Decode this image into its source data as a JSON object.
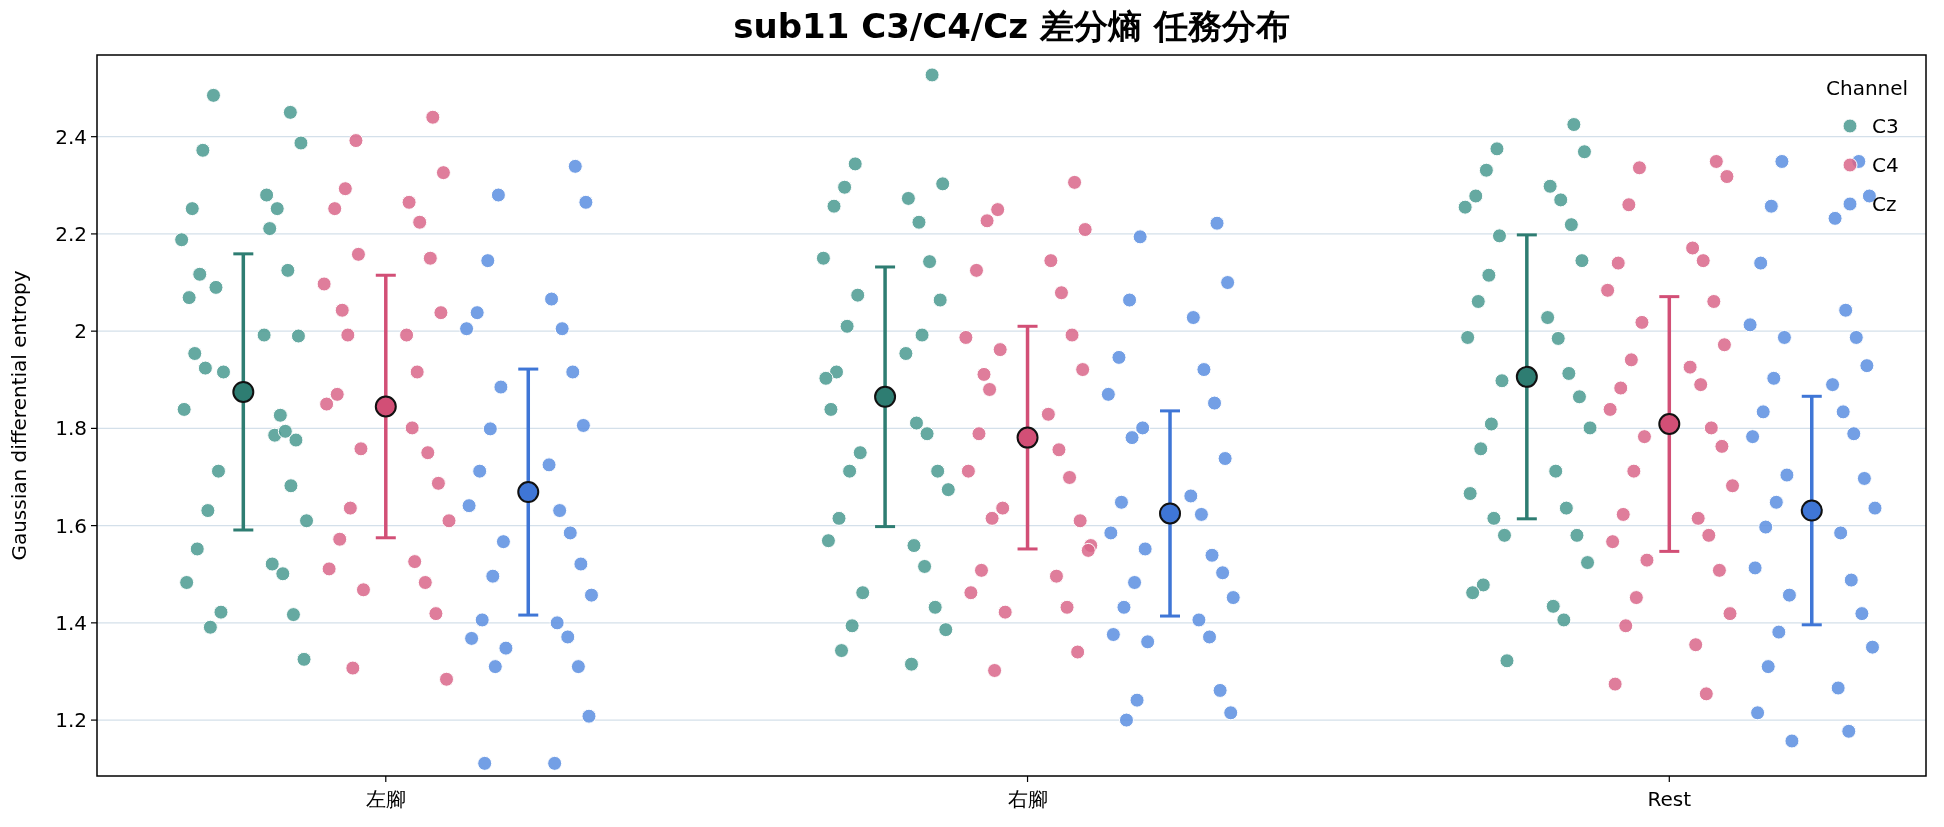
{
  "chart_data": {
    "type": "scatter",
    "title": "sub11 C3/C4/Cz 差分熵 任務分布",
    "ylabel": "Gaussian differential entropy",
    "legend_title": "Channel",
    "legend": "top right",
    "grid": "y",
    "marker": "circle",
    "categories": [
      "左腳",
      "右腳",
      "Rest"
    ],
    "ylim": [
      1.085,
      2.568
    ],
    "yticks": [
      1.2,
      1.4,
      1.6,
      1.8,
      2.0,
      2.2,
      2.4
    ],
    "series": [
      {
        "name": "C3",
        "color": "#4a9a90",
        "x": [
          "左腳",
          "左腳",
          "左腳",
          "左腳",
          "左腳",
          "左腳",
          "左腳",
          "左腳",
          "左腳",
          "左腳",
          "左腳",
          "左腳",
          "左腳",
          "左腳",
          "左腳",
          "左腳",
          "左腳",
          "左腳",
          "左腳",
          "左腳",
          "左腳",
          "左腳",
          "左腳",
          "左腳",
          "左腳",
          "左腳",
          "左腳",
          "左腳",
          "左腳",
          "左腳",
          "左腳",
          "左腳",
          "左腳",
          "左腳",
          "左腳",
          "右腳",
          "右腳",
          "右腳",
          "右腳",
          "右腳",
          "右腳",
          "右腳",
          "右腳",
          "右腳",
          "右腳",
          "右腳",
          "右腳",
          "右腳",
          "右腳",
          "右腳",
          "右腳",
          "右腳",
          "右腳",
          "右腳",
          "右腳",
          "右腳",
          "右腳",
          "右腳",
          "右腳",
          "右腳",
          "右腳",
          "右腳",
          "右腳",
          "右腳",
          "右腳",
          "右腳",
          "右腳",
          "右腳",
          "Rest",
          "Rest",
          "Rest",
          "Rest",
          "Rest",
          "Rest",
          "Rest",
          "Rest",
          "Rest",
          "Rest",
          "Rest",
          "Rest",
          "Rest",
          "Rest",
          "Rest",
          "Rest",
          "Rest",
          "Rest",
          "Rest",
          "Rest",
          "Rest",
          "Rest",
          "Rest",
          "Rest",
          "Rest",
          "Rest",
          "Rest",
          "Rest",
          "Rest",
          "Rest",
          "Rest",
          "Rest",
          "Rest",
          "Rest"
        ],
        "values": [
          2.45,
          2.485,
          2.387,
          2.372,
          2.28,
          2.252,
          2.252,
          2.188,
          2.125,
          2.09,
          1.99,
          1.924,
          1.992,
          1.954,
          1.786,
          1.839,
          1.794,
          1.712,
          1.776,
          1.631,
          1.61,
          1.552,
          1.521,
          1.483,
          1.501,
          1.422,
          1.417,
          1.391,
          1.325,
          2.117,
          2.211,
          2.069,
          1.827,
          1.916,
          1.682,
          2.527,
          2.344,
          2.303,
          2.296,
          2.273,
          2.257,
          2.224,
          2.15,
          2.143,
          2.074,
          2.064,
          2.01,
          1.954,
          1.916,
          1.811,
          1.903,
          1.789,
          1.75,
          1.712,
          1.712,
          1.674,
          1.615,
          1.559,
          1.569,
          1.516,
          1.462,
          1.432,
          1.394,
          1.386,
          1.343,
          1.315,
          1.839,
          1.992,
          2.425,
          2.375,
          2.369,
          2.331,
          2.298,
          2.278,
          2.27,
          2.255,
          2.219,
          2.196,
          2.145,
          2.115,
          2.028,
          2.061,
          1.985,
          1.987,
          1.913,
          1.898,
          1.865,
          1.809,
          1.801,
          1.758,
          1.712,
          1.666,
          1.636,
          1.58,
          1.58,
          1.615,
          1.524,
          1.478,
          1.434,
          1.462,
          1.406,
          1.322
        ]
      },
      {
        "name": "C4",
        "color": "#d9668a",
        "x": [
          "左腳",
          "左腳",
          "左腳",
          "左腳",
          "左腳",
          "左腳",
          "左腳",
          "左腳",
          "左腳",
          "左腳",
          "左腳",
          "左腳",
          "左腳",
          "左腳",
          "左腳",
          "左腳",
          "左腳",
          "左腳",
          "左腳",
          "左腳",
          "左腳",
          "左腳",
          "左腳",
          "左腳",
          "左腳",
          "左腳",
          "左腳",
          "左腳",
          "左腳",
          "左腳",
          "左腳",
          "右腳",
          "右腳",
          "右腳",
          "右腳",
          "右腳",
          "右腳",
          "右腳",
          "右腳",
          "右腳",
          "右腳",
          "右腳",
          "右腳",
          "右腳",
          "右腳",
          "右腳",
          "右腳",
          "右腳",
          "右腳",
          "右腳",
          "右腳",
          "右腳",
          "右腳",
          "右腳",
          "右腳",
          "右腳",
          "右腳",
          "右腳",
          "右腳",
          "右腳",
          "右腳",
          "Rest",
          "Rest",
          "Rest",
          "Rest",
          "Rest",
          "Rest",
          "Rest",
          "Rest",
          "Rest",
          "Rest",
          "Rest",
          "Rest",
          "Rest",
          "Rest",
          "Rest",
          "Rest",
          "Rest",
          "Rest",
          "Rest",
          "Rest",
          "Rest",
          "Rest",
          "Rest",
          "Rest",
          "Rest",
          "Rest",
          "Rest",
          "Rest",
          "Rest",
          "Rest",
          "Rest",
          "Rest",
          "Rest"
        ],
        "values": [
          2.44,
          2.392,
          2.326,
          2.293,
          2.265,
          2.252,
          2.224,
          2.097,
          2.15,
          2.158,
          2.038,
          1.992,
          1.992,
          1.87,
          1.916,
          1.85,
          1.75,
          1.758,
          1.687,
          1.636,
          1.61,
          1.572,
          1.526,
          1.511,
          1.483,
          1.468,
          1.419,
          1.307,
          1.284,
          2.043,
          1.801,
          2.306,
          2.25,
          2.209,
          2.227,
          2.145,
          2.125,
          2.079,
          1.987,
          1.992,
          1.962,
          1.921,
          1.88,
          1.829,
          1.789,
          1.756,
          1.712,
          1.699,
          1.636,
          1.61,
          1.615,
          1.559,
          1.508,
          1.496,
          1.462,
          1.432,
          1.422,
          1.34,
          1.302,
          1.549,
          1.911,
          2.349,
          2.336,
          2.318,
          2.26,
          2.171,
          2.14,
          2.145,
          2.084,
          2.061,
          2.018,
          1.972,
          1.941,
          1.926,
          1.883,
          1.89,
          1.839,
          1.801,
          1.783,
          1.763,
          1.712,
          1.682,
          1.623,
          1.615,
          1.567,
          1.58,
          1.529,
          1.508,
          1.452,
          1.419,
          1.394,
          1.355,
          1.274,
          1.254
        ]
      },
      {
        "name": "Cz",
        "color": "#5a8ee0",
        "x": [
          "左腳",
          "左腳",
          "左腳",
          "左腳",
          "左腳",
          "左腳",
          "左腳",
          "左腳",
          "左腳",
          "左腳",
          "左腳",
          "左腳",
          "左腳",
          "左腳",
          "左腳",
          "左腳",
          "左腳",
          "左腳",
          "左腳",
          "左腳",
          "左腳",
          "左腳",
          "左腳",
          "左腳",
          "左腳",
          "左腳",
          "左腳",
          "左腳",
          "左腳",
          "左腳",
          "左腳",
          "右腳",
          "右腳",
          "右腳",
          "右腳",
          "右腳",
          "右腳",
          "右腳",
          "右腳",
          "右腳",
          "右腳",
          "右腳",
          "右腳",
          "右腳",
          "右腳",
          "右腳",
          "右腳",
          "右腳",
          "右腳",
          "右腳",
          "右腳",
          "右腳",
          "右腳",
          "右腳",
          "右腳",
          "右腳",
          "右腳",
          "右腳",
          "右腳",
          "右腳",
          "右腳",
          "Rest",
          "Rest",
          "Rest",
          "Rest",
          "Rest",
          "Rest",
          "Rest",
          "Rest",
          "Rest",
          "Rest",
          "Rest",
          "Rest",
          "Rest",
          "Rest",
          "Rest",
          "Rest",
          "Rest",
          "Rest",
          "Rest",
          "Rest",
          "Rest",
          "Rest",
          "Rest",
          "Rest",
          "Rest",
          "Rest",
          "Rest",
          "Rest",
          "Rest",
          "Rest",
          "Rest",
          "Rest",
          "Rest",
          "Rest"
        ],
        "values": [
          2.339,
          2.28,
          2.265,
          2.145,
          2.066,
          2.038,
          2.005,
          2.005,
          1.916,
          1.885,
          1.806,
          1.799,
          1.725,
          1.712,
          1.631,
          1.641,
          1.585,
          1.567,
          1.521,
          1.496,
          1.457,
          1.406,
          1.4,
          1.368,
          1.371,
          1.348,
          1.31,
          1.31,
          1.208,
          1.111,
          1.111,
          2.222,
          2.194,
          2.1,
          2.064,
          2.028,
          1.946,
          1.921,
          1.87,
          1.852,
          1.801,
          1.738,
          1.781,
          1.661,
          1.648,
          1.623,
          1.585,
          1.539,
          1.552,
          1.503,
          1.483,
          1.452,
          1.432,
          1.406,
          1.376,
          1.371,
          1.361,
          1.261,
          1.241,
          1.215,
          1.2,
          2.349,
          2.349,
          2.278,
          2.257,
          2.232,
          2.14,
          2.043,
          2.013,
          1.987,
          1.987,
          1.929,
          1.903,
          1.89,
          1.834,
          1.834,
          1.783,
          1.789,
          1.704,
          1.697,
          1.648,
          1.636,
          1.597,
          1.585,
          1.513,
          1.488,
          1.457,
          1.419,
          1.381,
          1.35,
          1.31,
          1.266,
          1.215,
          1.177,
          1.157
        ]
      },
      {
        "color": "#2e7d72",
        "x": [
          "左腳",
          "右腳",
          "Rest"
        ],
        "values": [
          1.875,
          1.865,
          1.906
        ],
        "errors": [
          0.284,
          0.267,
          0.292
        ]
      },
      {
        "color": "#d24f76",
        "x": [
          "左腳",
          "右腳",
          "Rest"
        ],
        "values": [
          1.845,
          1.781,
          1.809
        ],
        "errors": [
          0.27,
          0.229,
          0.262
        ]
      },
      {
        "color": "#3f76d6",
        "x": [
          "左腳",
          "右腳",
          "Rest"
        ],
        "values": [
          1.669,
          1.625,
          1.631
        ],
        "errors": [
          0.253,
          0.211,
          0.235
        ]
      }
    ]
  }
}
